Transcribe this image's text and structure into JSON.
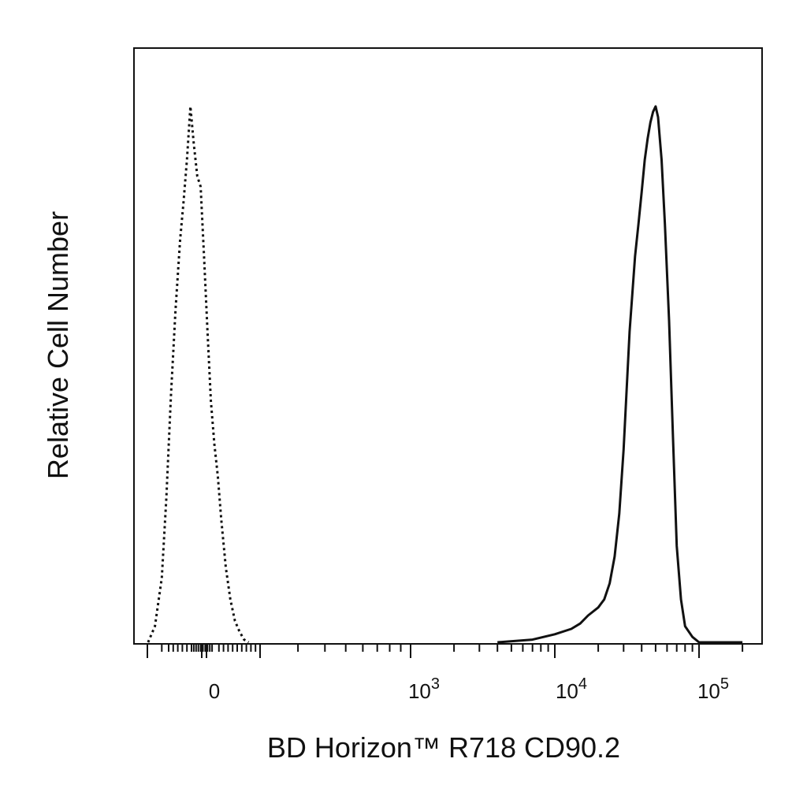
{
  "chart_data": {
    "type": "line",
    "title": "",
    "xlabel": "BD Horizon™ R718 CD90.2",
    "ylabel": "Relative Cell Number",
    "x_scale": "biexponential",
    "xlim": [
      -300,
      200000
    ],
    "ylim": [
      0,
      100
    ],
    "grid": false,
    "legend": "none",
    "x_tick_labels": [
      {
        "base": "0",
        "exp": ""
      },
      {
        "base": "10",
        "exp": "3"
      },
      {
        "base": "10",
        "exp": "4"
      },
      {
        "base": "10",
        "exp": "5"
      }
    ],
    "y_tick_labels": [],
    "series": [
      {
        "style": "dotted",
        "color": "#111111",
        "x": [
          -290,
          -260,
          -230,
          -210,
          -190,
          -170,
          -150,
          -135,
          -120,
          -105,
          -90,
          -75,
          -60,
          -45,
          -30,
          -15,
          0,
          15,
          30,
          50,
          70,
          90,
          110,
          130,
          150
        ],
        "y": [
          0,
          3,
          12,
          27,
          46,
          62,
          75,
          82,
          90,
          100,
          93,
          87,
          85,
          72,
          58,
          45,
          37,
          31,
          23,
          14,
          8,
          4,
          2,
          0.5,
          0
        ]
      },
      {
        "style": "solid",
        "color": "#111111",
        "x": [
          4000,
          7000,
          10000,
          13000,
          15000,
          17000,
          20000,
          22000,
          24000,
          26000,
          28000,
          30000,
          33000,
          36000,
          38000,
          40000,
          42000,
          44000,
          46000,
          48000,
          50000,
          52000,
          55000,
          58000,
          62000,
          66000,
          70000,
          75000,
          80000,
          90000,
          100000,
          130000,
          200000
        ],
        "y": [
          0,
          0.5,
          1.5,
          2.5,
          3.5,
          5,
          6.5,
          8,
          11,
          16,
          24,
          36,
          58,
          72,
          78,
          84,
          90,
          94,
          97,
          99,
          100,
          98,
          90,
          78,
          60,
          38,
          18,
          8,
          3,
          1,
          0,
          0,
          0
        ]
      }
    ]
  }
}
